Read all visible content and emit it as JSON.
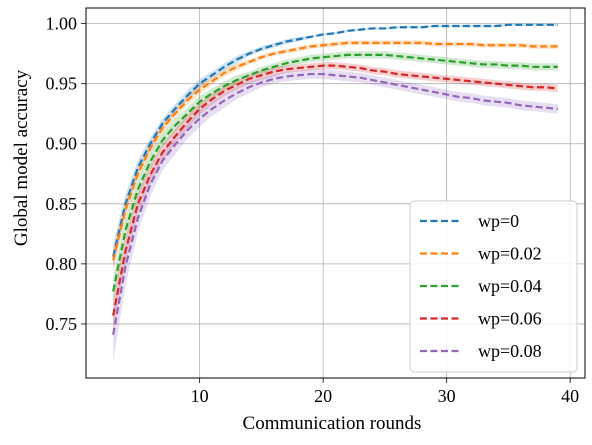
{
  "chart_data": {
    "type": "line",
    "title": "",
    "xlabel": "Communication rounds",
    "ylabel": "Global model accuracy",
    "xlim": [
      0.8,
      41.2
    ],
    "ylim": [
      0.705,
      1.013
    ],
    "xticks": [
      10,
      20,
      30,
      40
    ],
    "yticks": [
      0.75,
      0.8,
      0.85,
      0.9,
      0.95,
      1.0
    ],
    "xtick_labels": [
      "10",
      "20",
      "30",
      "40"
    ],
    "ytick_labels": [
      "0.75",
      "0.80",
      "0.85",
      "0.90",
      "0.95",
      "1.00"
    ],
    "grid": true,
    "legend_position": "lower-right",
    "line_style": "dashed",
    "band": "shaded band around each series",
    "x": [
      3,
      4,
      5,
      6,
      7,
      8,
      9,
      10,
      11,
      12,
      13,
      14,
      15,
      16,
      17,
      18,
      19,
      20,
      21,
      22,
      23,
      24,
      25,
      26,
      27,
      28,
      29,
      30,
      31,
      32,
      33,
      34,
      35,
      36,
      37,
      38,
      39
    ],
    "series": [
      {
        "name": "wp=0",
        "color": "#1f77b4",
        "values": [
          0.806,
          0.85,
          0.88,
          0.9,
          0.917,
          0.929,
          0.94,
          0.95,
          0.957,
          0.964,
          0.97,
          0.975,
          0.979,
          0.982,
          0.985,
          0.987,
          0.989,
          0.991,
          0.992,
          0.994,
          0.995,
          0.996,
          0.996,
          0.997,
          0.997,
          0.997,
          0.998,
          0.998,
          0.998,
          0.998,
          0.998,
          0.998,
          0.999,
          0.999,
          0.999,
          0.999,
          0.999
        ],
        "band": [
          0.01,
          0.008,
          0.006,
          0.005,
          0.004,
          0.004,
          0.004,
          0.004,
          0.003,
          0.003,
          0.003,
          0.002,
          0.002,
          0.002,
          0.002,
          0.002,
          0.001,
          0.001,
          0.001,
          0.001,
          0.001,
          0.001,
          0.001,
          0.001,
          0.001,
          0.001,
          0.001,
          0.001,
          0.001,
          0.001,
          0.001,
          0.001,
          0.001,
          0.001,
          0.001,
          0.001,
          0.001
        ]
      },
      {
        "name": "wp=0.02",
        "color": "#ff7f0e",
        "values": [
          0.803,
          0.845,
          0.875,
          0.896,
          0.913,
          0.925,
          0.936,
          0.945,
          0.952,
          0.959,
          0.964,
          0.968,
          0.972,
          0.975,
          0.977,
          0.979,
          0.981,
          0.982,
          0.983,
          0.984,
          0.984,
          0.984,
          0.984,
          0.984,
          0.984,
          0.984,
          0.983,
          0.983,
          0.983,
          0.983,
          0.982,
          0.982,
          0.982,
          0.982,
          0.981,
          0.981,
          0.981
        ],
        "band": [
          0.01,
          0.008,
          0.006,
          0.005,
          0.004,
          0.004,
          0.004,
          0.004,
          0.003,
          0.003,
          0.003,
          0.002,
          0.002,
          0.002,
          0.002,
          0.002,
          0.002,
          0.002,
          0.002,
          0.002,
          0.002,
          0.002,
          0.002,
          0.002,
          0.002,
          0.002,
          0.002,
          0.002,
          0.002,
          0.002,
          0.002,
          0.002,
          0.002,
          0.002,
          0.002,
          0.002,
          0.002
        ]
      },
      {
        "name": "wp=0.04",
        "color": "#2ca02c",
        "values": [
          0.777,
          0.828,
          0.862,
          0.885,
          0.903,
          0.915,
          0.925,
          0.935,
          0.942,
          0.948,
          0.953,
          0.957,
          0.961,
          0.964,
          0.967,
          0.969,
          0.971,
          0.972,
          0.973,
          0.974,
          0.974,
          0.974,
          0.974,
          0.973,
          0.972,
          0.971,
          0.97,
          0.969,
          0.968,
          0.967,
          0.966,
          0.966,
          0.965,
          0.965,
          0.964,
          0.964,
          0.964
        ],
        "band": [
          0.012,
          0.01,
          0.008,
          0.007,
          0.006,
          0.006,
          0.005,
          0.005,
          0.004,
          0.004,
          0.004,
          0.003,
          0.003,
          0.003,
          0.003,
          0.003,
          0.003,
          0.003,
          0.003,
          0.003,
          0.003,
          0.003,
          0.003,
          0.003,
          0.003,
          0.003,
          0.003,
          0.003,
          0.003,
          0.003,
          0.003,
          0.003,
          0.003,
          0.003,
          0.003,
          0.003,
          0.003
        ]
      },
      {
        "name": "wp=0.06",
        "color": "#d62728",
        "values": [
          0.757,
          0.811,
          0.85,
          0.874,
          0.893,
          0.906,
          0.918,
          0.929,
          0.937,
          0.944,
          0.949,
          0.954,
          0.957,
          0.96,
          0.962,
          0.963,
          0.964,
          0.965,
          0.965,
          0.964,
          0.963,
          0.961,
          0.96,
          0.958,
          0.957,
          0.956,
          0.955,
          0.954,
          0.953,
          0.952,
          0.951,
          0.95,
          0.949,
          0.948,
          0.947,
          0.947,
          0.946
        ],
        "band": [
          0.014,
          0.011,
          0.009,
          0.008,
          0.007,
          0.006,
          0.006,
          0.005,
          0.005,
          0.004,
          0.004,
          0.004,
          0.004,
          0.004,
          0.003,
          0.003,
          0.003,
          0.003,
          0.003,
          0.003,
          0.003,
          0.003,
          0.003,
          0.003,
          0.003,
          0.003,
          0.003,
          0.003,
          0.003,
          0.003,
          0.003,
          0.003,
          0.003,
          0.003,
          0.003,
          0.003,
          0.003
        ]
      },
      {
        "name": "wp=0.08",
        "color": "#9467bd",
        "values": [
          0.741,
          0.798,
          0.838,
          0.866,
          0.886,
          0.899,
          0.911,
          0.921,
          0.929,
          0.936,
          0.942,
          0.947,
          0.951,
          0.954,
          0.956,
          0.957,
          0.958,
          0.958,
          0.957,
          0.956,
          0.955,
          0.953,
          0.951,
          0.949,
          0.947,
          0.945,
          0.943,
          0.941,
          0.939,
          0.938,
          0.936,
          0.935,
          0.934,
          0.932,
          0.931,
          0.93,
          0.929
        ],
        "band": [
          0.022,
          0.016,
          0.012,
          0.01,
          0.008,
          0.008,
          0.007,
          0.007,
          0.006,
          0.006,
          0.005,
          0.005,
          0.004,
          0.004,
          0.004,
          0.004,
          0.004,
          0.004,
          0.004,
          0.004,
          0.004,
          0.004,
          0.004,
          0.004,
          0.004,
          0.004,
          0.004,
          0.004,
          0.004,
          0.004,
          0.004,
          0.004,
          0.004,
          0.004,
          0.004,
          0.004,
          0.004
        ]
      }
    ]
  }
}
